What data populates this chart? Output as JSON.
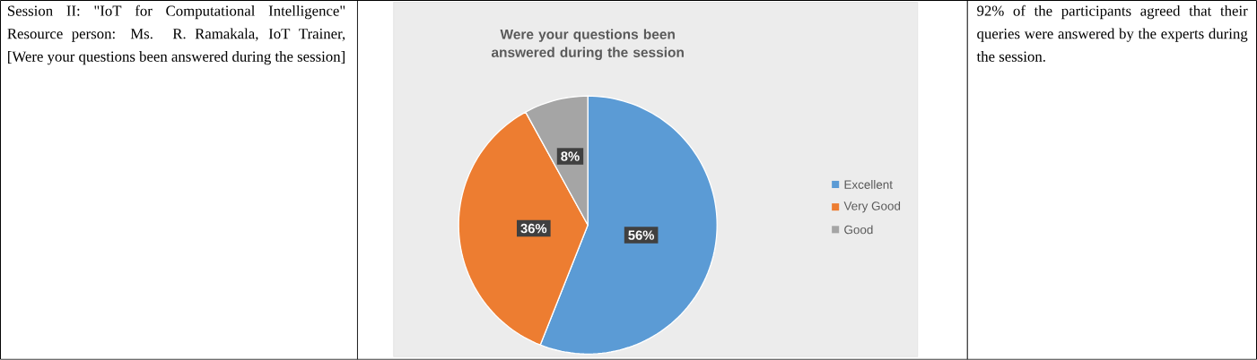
{
  "chart_data": {
    "type": "pie",
    "title": "Were your questions been answered during the session",
    "categories": [
      "Excellent",
      "Very Good",
      "Good"
    ],
    "values": [
      56,
      36,
      8
    ],
    "colors": [
      "#5b9bd5",
      "#ed7d31",
      "#a5a5a5"
    ],
    "value_labels": [
      "56%",
      "36%",
      "8%"
    ],
    "legend": "right",
    "annotations": [
      "Session II: \"IoT for Computational Intelligence\" Resource person: Ms. R. Ramakala, IoT Trainer, [Were your questions been answered during the session]",
      "92% of the participants agreed that their queries were answered by the experts during the session."
    ]
  }
}
